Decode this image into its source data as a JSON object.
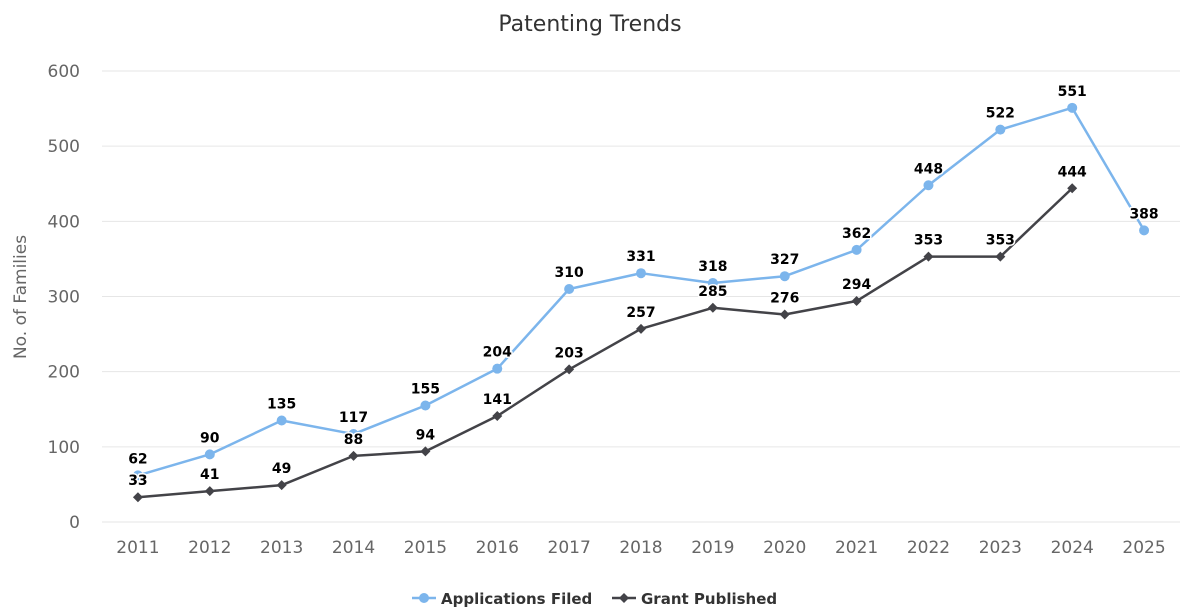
{
  "chart_data": {
    "type": "line",
    "title": "Patenting Trends",
    "xlabel": "",
    "ylabel": "No. of Families",
    "ylim": [
      0,
      600
    ],
    "yticks": [
      0,
      100,
      200,
      300,
      400,
      500,
      600
    ],
    "categories": [
      "2011",
      "2012",
      "2013",
      "2014",
      "2015",
      "2016",
      "2017",
      "2018",
      "2019",
      "2020",
      "2021",
      "2022",
      "2023",
      "2024",
      "2025"
    ],
    "grid": true,
    "legend_position": "bottom",
    "series": [
      {
        "name": "Applications Filed",
        "color": "#7cb5ec",
        "marker": "circle",
        "values": [
          62,
          90,
          135,
          117,
          155,
          204,
          310,
          331,
          318,
          327,
          362,
          448,
          522,
          551,
          388
        ]
      },
      {
        "name": "Grant Published",
        "color": "#434348",
        "marker": "diamond",
        "values": [
          33,
          41,
          49,
          88,
          94,
          141,
          203,
          257,
          285,
          276,
          294,
          353,
          353,
          444,
          null
        ]
      }
    ]
  }
}
